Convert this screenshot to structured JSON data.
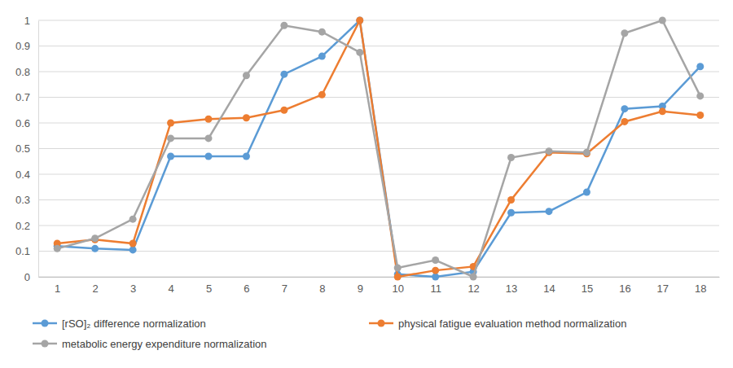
{
  "chart_data": {
    "type": "line",
    "categories": [
      "1",
      "2",
      "3",
      "4",
      "5",
      "6",
      "7",
      "8",
      "9",
      "10",
      "11",
      "12",
      "13",
      "14",
      "15",
      "16",
      "17",
      "18"
    ],
    "series": [
      {
        "name": "[rSO]₂ difference normalization",
        "color": "#5b9bd5",
        "values": [
          0.12,
          0.11,
          0.105,
          0.47,
          0.47,
          0.47,
          0.79,
          0.86,
          1.0,
          0.01,
          0.0,
          0.02,
          0.25,
          0.255,
          0.33,
          0.655,
          0.665,
          0.82
        ]
      },
      {
        "name": "physical fatigue evaluation method normalization",
        "color": "#ed7d31",
        "values": [
          0.13,
          0.145,
          0.13,
          0.6,
          0.615,
          0.62,
          0.65,
          0.71,
          1.0,
          0.0,
          0.025,
          0.04,
          0.3,
          0.485,
          0.48,
          0.605,
          0.645,
          0.63
        ]
      },
      {
        "name": "metabolic energy expenditure normalization",
        "color": "#a5a5a5",
        "values": [
          0.11,
          0.15,
          0.225,
          0.54,
          0.54,
          0.785,
          0.98,
          0.955,
          0.875,
          0.035,
          0.065,
          0.0,
          0.465,
          0.49,
          0.485,
          0.95,
          1.0,
          0.705
        ]
      }
    ],
    "ylim": [
      0,
      1
    ],
    "yticks": [
      0,
      0.1,
      0.2,
      0.3,
      0.4,
      0.5,
      0.6,
      0.7,
      0.8,
      0.9,
      1
    ],
    "grid": true,
    "legend": "bottom",
    "marker": "circle"
  }
}
